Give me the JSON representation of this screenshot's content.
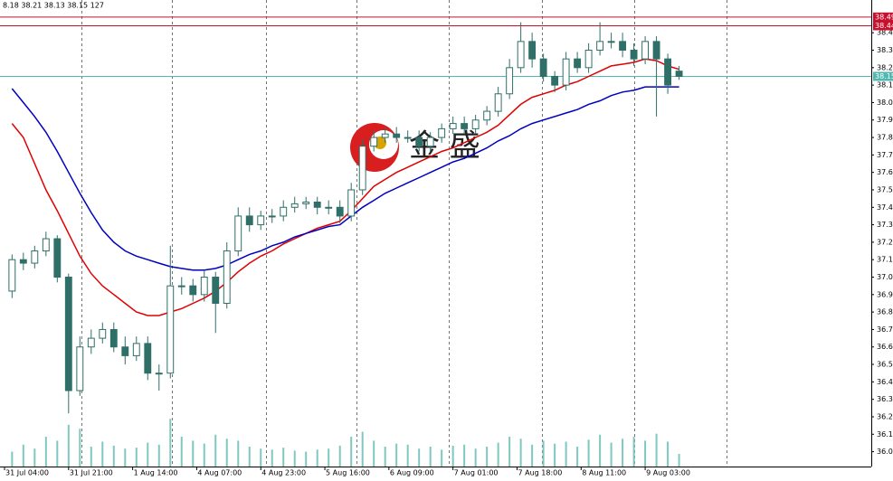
{
  "chart_data": {
    "type": "candlestick",
    "header": "8.18 38.21 38.13 38.15  127",
    "watermark": "金 盛",
    "x": [
      2,
      5,
      8,
      11,
      14,
      17,
      20,
      23,
      26,
      29,
      32,
      35,
      38,
      41,
      44,
      47,
      50,
      53,
      56,
      59,
      62,
      65,
      68,
      71,
      74,
      77,
      80,
      83,
      86,
      89,
      92,
      95,
      98,
      101,
      104,
      107,
      110,
      113,
      116,
      119,
      122,
      125,
      128,
      131,
      134,
      137,
      140,
      143,
      146,
      149,
      152,
      155,
      158,
      161,
      164,
      167,
      170,
      173,
      176,
      179
    ],
    "open": [
      36.92,
      37.1,
      37.08,
      37.15,
      37.22,
      37.0,
      36.35,
      36.6,
      36.65,
      36.7,
      36.6,
      36.55,
      36.62,
      36.45,
      36.45,
      36.95,
      36.95,
      36.9,
      37.0,
      36.85,
      37.15,
      37.35,
      37.3,
      37.35,
      37.35,
      37.4,
      37.42,
      37.43,
      37.4,
      37.4,
      37.35,
      37.5,
      37.75,
      37.8,
      37.82,
      37.8,
      37.8,
      37.75,
      37.8,
      37.85,
      37.88,
      37.85,
      37.9,
      37.95,
      38.05,
      38.2,
      38.35,
      38.25,
      38.15,
      38.1,
      38.25,
      38.2,
      38.3,
      38.35,
      38.35,
      38.3,
      38.25,
      38.35,
      38.25,
      38.18
    ],
    "high": [
      37.13,
      37.14,
      37.18,
      37.26,
      37.24,
      37.02,
      36.66,
      36.7,
      36.74,
      36.74,
      36.66,
      36.66,
      36.66,
      36.5,
      37.18,
      37.0,
      36.99,
      37.04,
      37.03,
      37.2,
      37.4,
      37.4,
      37.38,
      37.39,
      37.44,
      37.46,
      37.46,
      37.46,
      37.44,
      37.44,
      37.54,
      37.79,
      37.84,
      37.86,
      37.86,
      37.84,
      37.84,
      37.83,
      37.88,
      37.92,
      37.92,
      37.93,
      37.98,
      38.09,
      38.25,
      38.46,
      38.4,
      38.28,
      38.18,
      38.29,
      38.29,
      38.34,
      38.46,
      38.4,
      38.4,
      38.34,
      38.38,
      38.38,
      38.28,
      38.21
    ],
    "low": [
      36.88,
      37.04,
      37.05,
      37.12,
      36.97,
      36.22,
      36.32,
      36.56,
      36.62,
      36.57,
      36.5,
      36.52,
      36.41,
      36.35,
      36.42,
      36.9,
      36.86,
      36.86,
      36.68,
      36.82,
      37.12,
      37.26,
      37.27,
      37.31,
      37.32,
      37.37,
      37.39,
      37.36,
      37.36,
      37.31,
      37.32,
      37.47,
      37.72,
      37.77,
      37.77,
      37.77,
      37.72,
      37.72,
      37.77,
      37.82,
      37.82,
      37.82,
      37.87,
      37.92,
      38.02,
      38.17,
      38.2,
      38.12,
      38.06,
      38.07,
      38.17,
      38.17,
      38.27,
      38.31,
      38.26,
      38.21,
      38.22,
      37.92,
      38.05,
      38.13
    ],
    "close": [
      37.1,
      37.08,
      37.15,
      37.22,
      37.0,
      36.35,
      36.6,
      36.65,
      36.7,
      36.6,
      36.55,
      36.62,
      36.45,
      36.45,
      36.95,
      36.95,
      36.9,
      37.0,
      36.85,
      37.15,
      37.35,
      37.3,
      37.35,
      37.35,
      37.4,
      37.42,
      37.43,
      37.4,
      37.4,
      37.35,
      37.5,
      37.75,
      37.8,
      37.82,
      37.8,
      37.8,
      37.75,
      37.8,
      37.85,
      37.88,
      37.85,
      37.9,
      37.95,
      38.05,
      38.2,
      38.35,
      38.25,
      38.15,
      38.1,
      38.25,
      38.2,
      38.3,
      38.35,
      38.35,
      38.3,
      38.25,
      38.35,
      38.25,
      38.1,
      38.15
    ],
    "volume": [
      150,
      220,
      180,
      300,
      260,
      420,
      380,
      200,
      250,
      210,
      180,
      190,
      240,
      220,
      480,
      300,
      260,
      230,
      320,
      280,
      260,
      200,
      180,
      170,
      190,
      160,
      150,
      170,
      180,
      210,
      300,
      350,
      260,
      200,
      230,
      220,
      180,
      200,
      170,
      210,
      220,
      180,
      200,
      240,
      300,
      280,
      220,
      260,
      230,
      250,
      200,
      270,
      320,
      240,
      280,
      300,
      260,
      330,
      250,
      127
    ],
    "up_color": "#ffffff",
    "down_color": "#2f6f68",
    "candle_stroke": "#2f6f68",
    "volume_color": "#7fc8c0",
    "series": [
      {
        "color": "#e00000",
        "values": [
          37.88,
          37.8,
          37.65,
          37.5,
          37.38,
          37.25,
          37.12,
          37.02,
          36.95,
          36.9,
          36.85,
          36.8,
          36.78,
          36.78,
          36.8,
          36.82,
          36.85,
          36.88,
          36.92,
          36.97,
          37.03,
          37.08,
          37.12,
          37.15,
          37.19,
          37.22,
          37.25,
          37.28,
          37.3,
          37.32,
          37.38,
          37.45,
          37.52,
          37.56,
          37.6,
          37.63,
          37.66,
          37.69,
          37.72,
          37.74,
          37.77,
          37.8,
          37.83,
          37.87,
          37.93,
          37.99,
          38.03,
          38.05,
          38.07,
          38.1,
          38.12,
          38.15,
          38.18,
          38.21,
          38.22,
          38.23,
          38.25,
          38.24,
          38.21,
          38.19
        ]
      },
      {
        "color": "#0000c0",
        "values": [
          38.08,
          38.0,
          37.92,
          37.83,
          37.72,
          37.6,
          37.48,
          37.37,
          37.27,
          37.2,
          37.15,
          37.12,
          37.1,
          37.08,
          37.06,
          37.05,
          37.04,
          37.04,
          37.05,
          37.07,
          37.1,
          37.13,
          37.15,
          37.18,
          37.2,
          37.23,
          37.25,
          37.27,
          37.29,
          37.3,
          37.35,
          37.4,
          37.44,
          37.48,
          37.51,
          37.54,
          37.57,
          37.6,
          37.63,
          37.66,
          37.68,
          37.71,
          37.74,
          37.78,
          37.81,
          37.85,
          37.88,
          37.9,
          37.92,
          37.94,
          37.96,
          37.99,
          38.01,
          38.04,
          38.06,
          38.07,
          38.09,
          38.09,
          38.09,
          38.09
        ]
      }
    ],
    "levels": [
      {
        "value": 38.49,
        "color": "#c8102e"
      },
      {
        "value": 38.44,
        "color": "#c8102e"
      },
      {
        "value": 38.15,
        "color": "#4fb8b0"
      }
    ],
    "separators": [
      20.5,
      44.5,
      69.5,
      93.5,
      118,
      142.5,
      167,
      191.5
    ],
    "xlim": [
      -1.2,
      230
    ],
    "xticks": [
      {
        "value": 0,
        "label": "31 Jul 04:00"
      },
      {
        "value": 17,
        "label": "31 Jul 21:00"
      },
      {
        "value": 34,
        "label": "1 Aug 14:00"
      },
      {
        "value": 51,
        "label": "4 Aug 07:00"
      },
      {
        "value": 68,
        "label": "4 Aug 23:00"
      },
      {
        "value": 85,
        "label": "5 Aug 16:00"
      },
      {
        "value": 102,
        "label": "6 Aug 09:00"
      },
      {
        "value": 119,
        "label": "7 Aug 01:00"
      },
      {
        "value": 136,
        "label": "7 Aug 18:00"
      },
      {
        "value": 153,
        "label": "8 Aug 11:00"
      },
      {
        "value": 170,
        "label": "9 Aug 03:00"
      }
    ],
    "ylim": [
      35.915,
      38.5875
    ],
    "yticks": [
      {
        "value": 36,
        "label": "36.00"
      },
      {
        "value": 36.1,
        "label": "36.10"
      },
      {
        "value": 36.2,
        "label": "36.20"
      },
      {
        "value": 36.3,
        "label": "36.30"
      },
      {
        "value": 36.4,
        "label": "36.40"
      },
      {
        "value": 36.5,
        "label": "36.50"
      },
      {
        "value": 36.6,
        "label": "36.60"
      },
      {
        "value": 36.7,
        "label": "36.70"
      },
      {
        "value": 36.8,
        "label": "36.80"
      },
      {
        "value": 36.9,
        "label": "36.90"
      },
      {
        "value": 37,
        "label": "37.00"
      },
      {
        "value": 37.1,
        "label": "37.10"
      },
      {
        "value": 37.2,
        "label": "37.20"
      },
      {
        "value": 37.3,
        "label": "37.30"
      },
      {
        "value": 37.4,
        "label": "37.40"
      },
      {
        "value": 37.5,
        "label": "37.50"
      },
      {
        "value": 37.6,
        "label": "37.60"
      },
      {
        "value": 37.7,
        "label": "37.70"
      },
      {
        "value": 37.8,
        "label": "37.80"
      },
      {
        "value": 37.9,
        "label": "37.90"
      },
      {
        "value": 38,
        "label": "38.00"
      },
      {
        "value": 38.1,
        "label": "38.10"
      },
      {
        "value": 38.2,
        "label": "38.20"
      },
      {
        "value": 38.3,
        "label": "38.30"
      },
      {
        "value": 38.4,
        "label": "38.40"
      }
    ]
  }
}
